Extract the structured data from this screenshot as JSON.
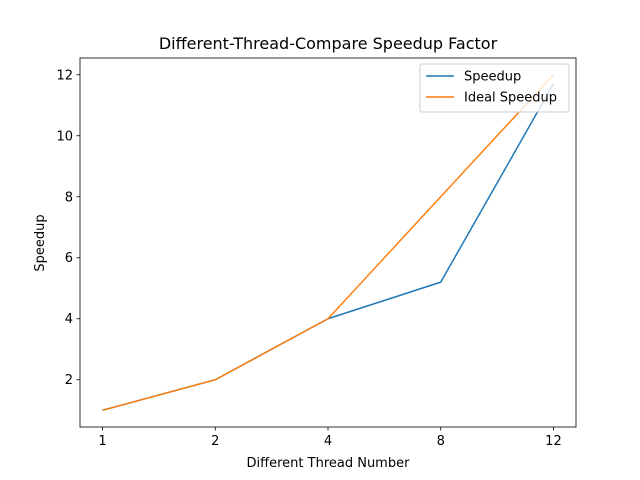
{
  "chart_data": {
    "type": "line",
    "title": "Different-Thread-Compare Speedup Factor",
    "xlabel": "Different Thread Number",
    "ylabel": "Speedup",
    "categories": [
      "1",
      "2",
      "4",
      "8",
      "12"
    ],
    "series": [
      {
        "name": "Speedup",
        "color": "#1f77b4",
        "values": [
          1,
          2,
          4,
          5.2,
          11.7
        ]
      },
      {
        "name": "Ideal Speedup",
        "color": "#ff7f0e",
        "values": [
          1,
          2,
          4,
          8,
          12
        ]
      }
    ],
    "ylim": [
      0.45,
      12.55
    ],
    "yticks": [
      2,
      4,
      6,
      8,
      10,
      12
    ],
    "grid": false,
    "legend_position": "top-right"
  }
}
